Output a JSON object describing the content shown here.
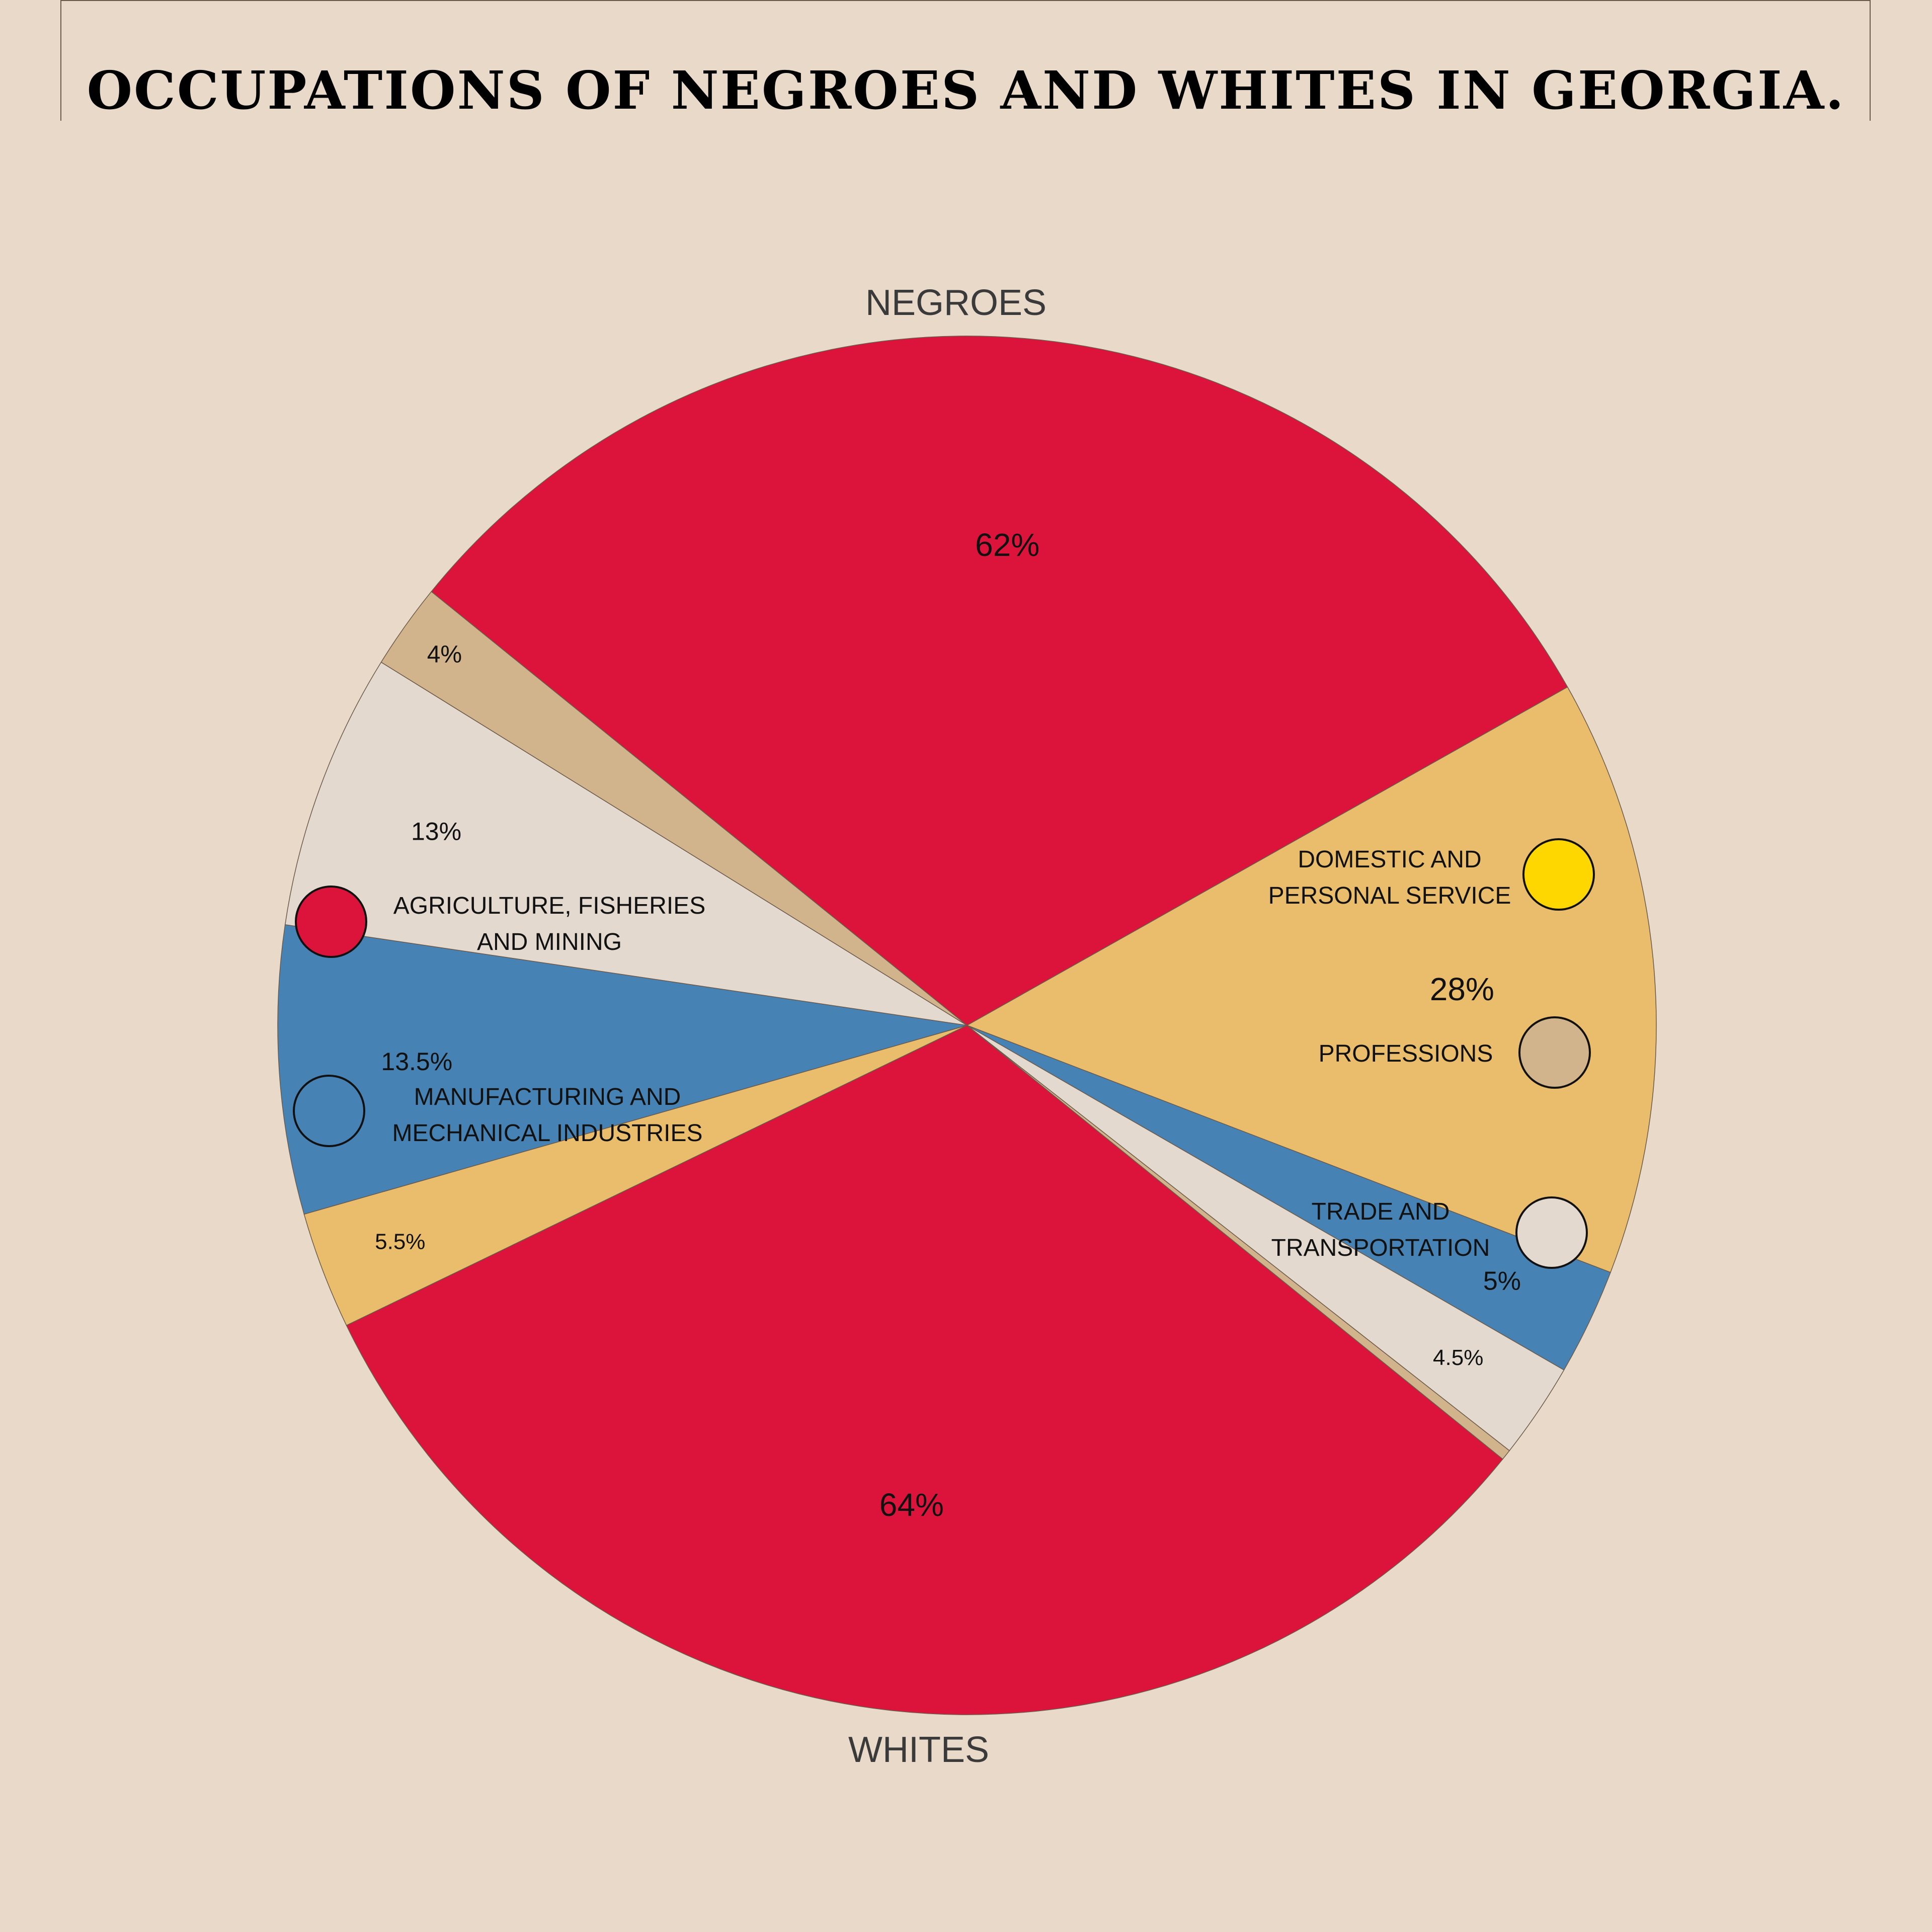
{
  "title": "OCCUPATIONS OF NEGROES AND WHITES IN GEORGIA.",
  "colors": {
    "background": "#e8d9c9",
    "agriculture": "#dc143c",
    "domestic_chart": "#e9bd6c",
    "domestic_legend": "#ffd700",
    "manufacturing": "#4682b4",
    "trade": "#e3d9cf",
    "professions": "#d2b48c"
  },
  "legend": [
    {
      "id": "agriculture",
      "lines": [
        "AGRICULTURE, FISHERIES",
        "AND MINING"
      ],
      "color": "#dc143c"
    },
    {
      "id": "manufacturing",
      "lines": [
        "MANUFACTURING AND",
        "MECHANICAL INDUSTRIES"
      ],
      "color": "#4682b4"
    },
    {
      "id": "domestic",
      "lines": [
        "DOMESTIC AND",
        "PERSONAL SERVICE"
      ],
      "color": "#ffd700"
    },
    {
      "id": "professions",
      "lines": [
        "PROFESSIONS"
      ],
      "color": "#d2b48c"
    },
    {
      "id": "trade",
      "lines": [
        "TRADE AND",
        "TRANSPORTATION"
      ],
      "color": "#e3d9cf"
    }
  ],
  "chart_data": {
    "type": "pie",
    "title": "OCCUPATIONS OF NEGROES AND WHITES IN GEORGIA.",
    "categories": [
      "AGRICULTURE, FISHERIES AND MINING",
      "DOMESTIC AND PERSONAL SERVICE",
      "MANUFACTURING AND MECHANICAL INDUSTRIES",
      "TRADE AND TRANSPORTATION",
      "PROFESSIONS"
    ],
    "series": [
      {
        "name": "NEGROES",
        "slices": [
          {
            "category": "AGRICULTURE, FISHERIES AND MINING",
            "value": 62,
            "label": "62%",
            "color": "#dc143c"
          },
          {
            "category": "DOMESTIC AND PERSONAL SERVICE",
            "value": 28,
            "label": "28%",
            "color": "#e9bd6c"
          },
          {
            "category": "MANUFACTURING AND MECHANICAL INDUSTRIES",
            "value": 5,
            "label": "5%",
            "color": "#4682b4"
          },
          {
            "category": "TRADE AND TRANSPORTATION",
            "value": 4.5,
            "label": "4.5%",
            "color": "#e3d9cf"
          },
          {
            "category": "PROFESSIONS",
            "value": 0.5,
            "label": "",
            "color": "#d2b48c"
          }
        ]
      },
      {
        "name": "WHITES",
        "slices": [
          {
            "category": "AGRICULTURE, FISHERIES AND MINING",
            "value": 64,
            "label": "64%",
            "color": "#dc143c"
          },
          {
            "category": "DOMESTIC AND PERSONAL SERVICE",
            "value": 5.5,
            "label": "5.5%",
            "color": "#e9bd6c"
          },
          {
            "category": "MANUFACTURING AND MECHANICAL INDUSTRIES",
            "value": 13.5,
            "label": "13.5%",
            "color": "#4682b4"
          },
          {
            "category": "TRADE AND TRANSPORTATION",
            "value": 13,
            "label": "13%",
            "color": "#e3d9cf"
          },
          {
            "category": "PROFESSIONS",
            "value": 4,
            "label": "4%",
            "color": "#d2b48c"
          }
        ]
      }
    ]
  }
}
